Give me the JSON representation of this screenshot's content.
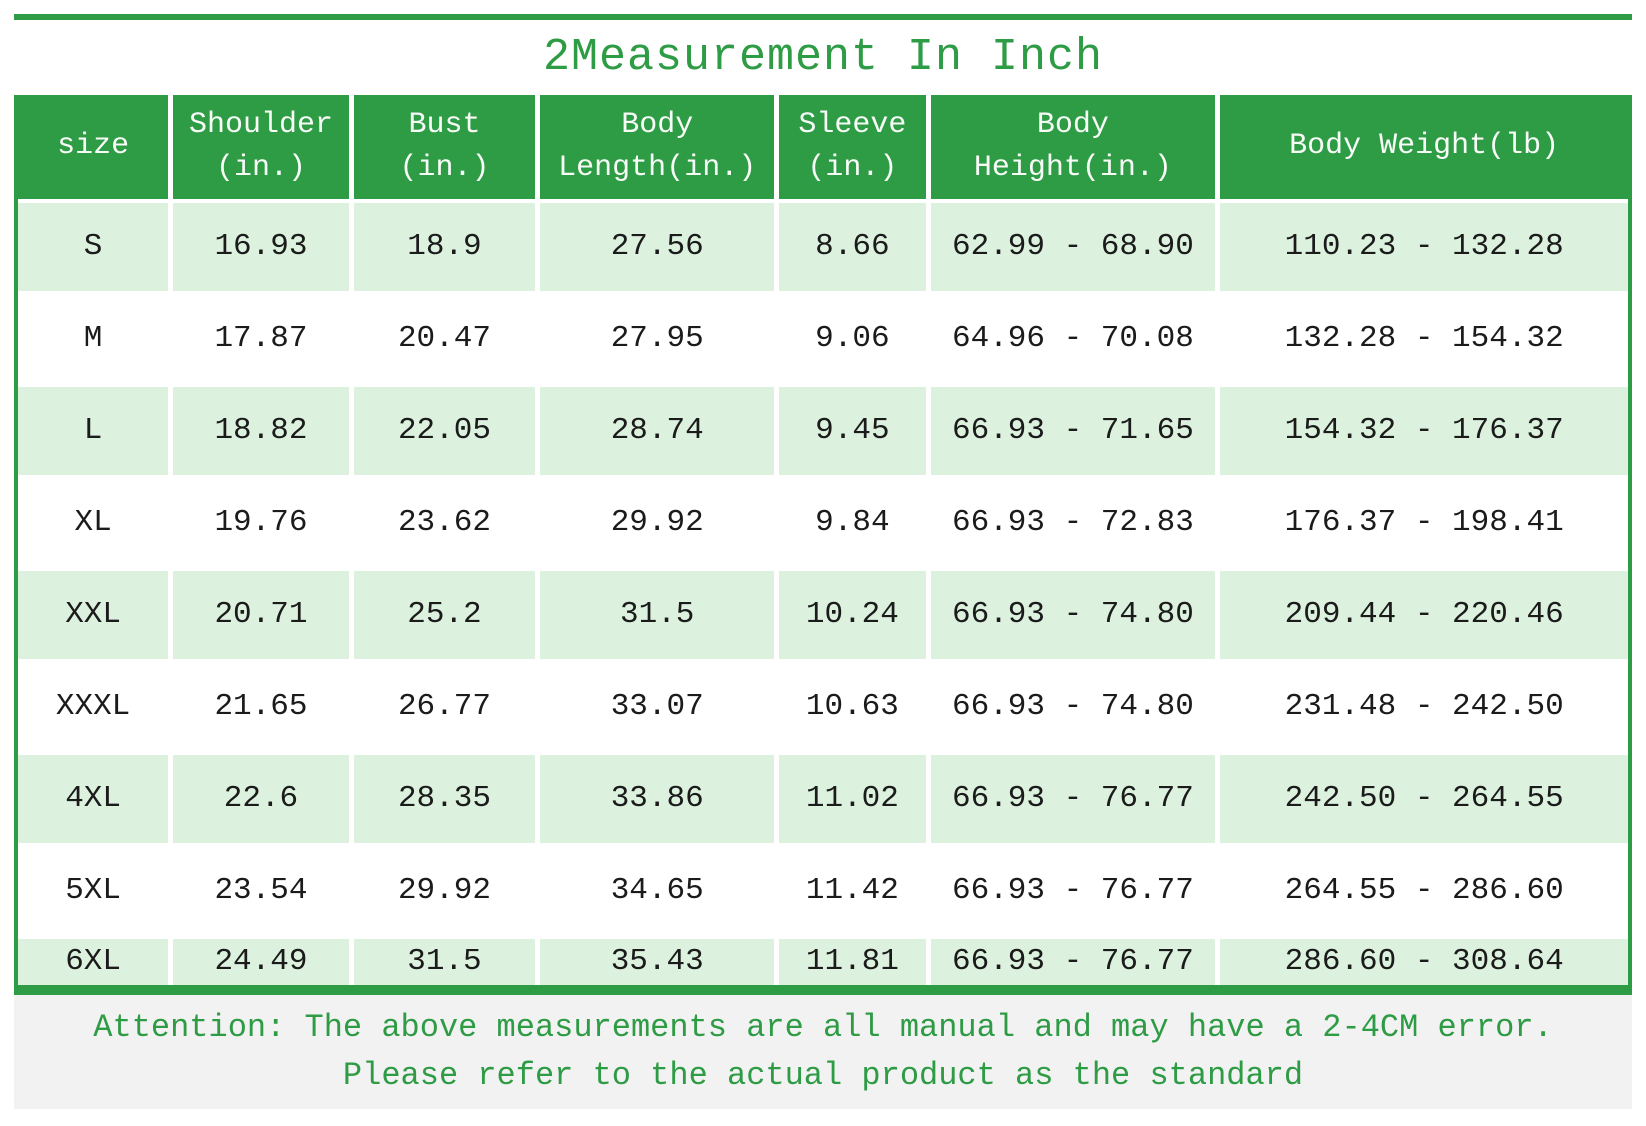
{
  "title": "2Measurement In Inch",
  "colors": {
    "accent_green": "#2e9b45",
    "row_light_green": "#dcf2de",
    "footer_bg": "#f2f2f2",
    "header_text": "#f7fcf7",
    "data_text": "#1b1b1b"
  },
  "table": {
    "columns": [
      "size",
      "Shoulder\n(in.)",
      "Bust\n(in.)",
      "Body\nLength(in.)",
      "Sleeve\n(in.)",
      "Body\nHeight(in.)",
      "Body Weight(lb)"
    ],
    "rows": [
      [
        "S",
        "16.93",
        "18.9",
        "27.56",
        "8.66",
        "62.99 - 68.90",
        "110.23 - 132.28"
      ],
      [
        "M",
        "17.87",
        "20.47",
        "27.95",
        "9.06",
        "64.96 - 70.08",
        "132.28 - 154.32"
      ],
      [
        "L",
        "18.82",
        "22.05",
        "28.74",
        "9.45",
        "66.93 - 71.65",
        "154.32 - 176.37"
      ],
      [
        "XL",
        "19.76",
        "23.62",
        "29.92",
        "9.84",
        "66.93 - 72.83",
        "176.37 - 198.41"
      ],
      [
        "XXL",
        "20.71",
        "25.2",
        "31.5",
        "10.24",
        "66.93 - 74.80",
        "209.44 - 220.46"
      ],
      [
        "XXXL",
        "21.65",
        "26.77",
        "33.07",
        "10.63",
        "66.93 - 74.80",
        "231.48 - 242.50"
      ],
      [
        "4XL",
        "22.6",
        "28.35",
        "33.86",
        "11.02",
        "66.93 - 76.77",
        "242.50 - 264.55"
      ],
      [
        "5XL",
        "23.54",
        "29.92",
        "34.65",
        "11.42",
        "66.93 - 76.77",
        "264.55 - 286.60"
      ],
      [
        "6XL",
        "24.49",
        "31.5",
        "35.43",
        "11.81",
        "66.93 - 76.77",
        "286.60 - 308.64"
      ]
    ]
  },
  "attention": {
    "line1": "Attention: The above measurements are all manual and may have a 2-4CM error.",
    "line2": "Please refer to the actual product as the standard"
  }
}
